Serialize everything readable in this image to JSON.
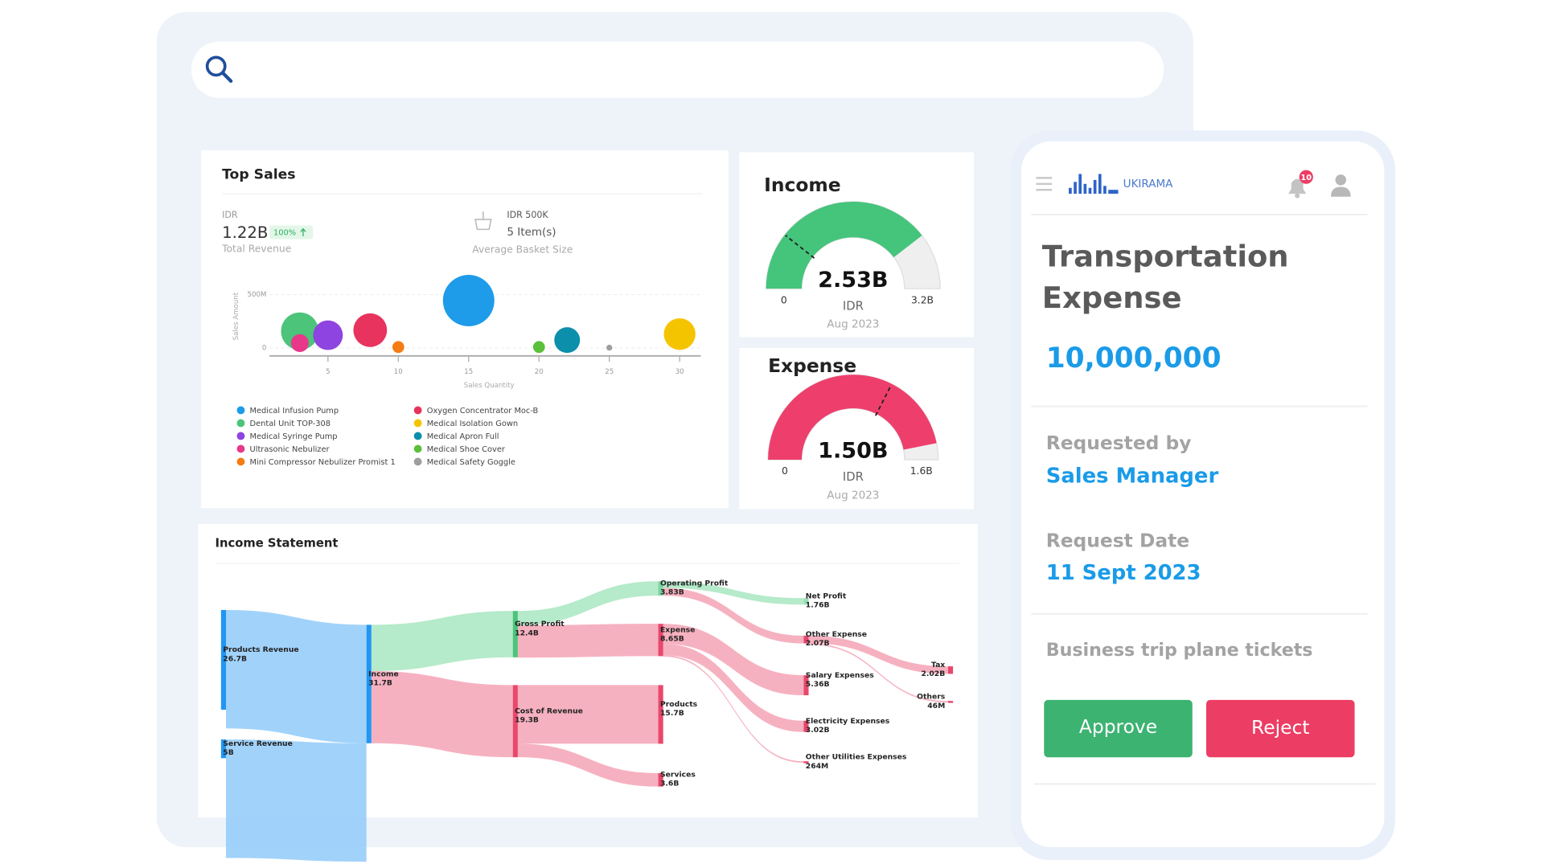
{
  "top_sales_summary": {
    "currency": "IDR",
    "total_revenue": "1.22B",
    "change": "100%",
    "total_revenue_label": "Total Revenue",
    "basket_value": "IDR 500K",
    "basket_items": "5 Item(s)",
    "basket_label": "Average Basket Size"
  },
  "chart_data": [
    {
      "type": "scatter",
      "title": "Top Sales",
      "x_label": "Sales Quantity",
      "y_label": "Sales Amount",
      "xlim": [
        0,
        31.5
      ],
      "xticks": [
        5,
        10,
        15,
        20,
        25,
        30
      ],
      "ylim": [
        0,
        500000000
      ],
      "yticks": [
        0,
        {
          "value": 500000000,
          "label": "500M"
        }
      ],
      "grid": true,
      "legend": "bottom-left",
      "series": [
        {
          "name": "Medical Infusion Pump",
          "color": "#1e9be9",
          "x": [
            15
          ],
          "values": [
            444000000
          ],
          "sizes": [
            26
          ]
        },
        {
          "name": "Dental Unit TOP-308",
          "color": "#4cc47a",
          "x": [
            3
          ],
          "values": [
            157000000
          ],
          "sizes": [
            19
          ]
        },
        {
          "name": "Medical Syringe Pump",
          "color": "#8e44e0",
          "x": [
            5
          ],
          "values": [
            120000000
          ],
          "sizes": [
            15
          ]
        },
        {
          "name": "Ultrasonic Nebulizer",
          "color": "#e8388a",
          "x": [
            3
          ],
          "values": [
            46000000
          ],
          "sizes": [
            9
          ]
        },
        {
          "name": "Mini Compressor Nebulizer Promist 1",
          "color": "#f57c12",
          "x": [
            10
          ],
          "values": [
            9000000
          ],
          "sizes": [
            6
          ]
        },
        {
          "name": "Oxygen Concentrator Moc-B",
          "color": "#e8335e",
          "x": [
            8
          ],
          "values": [
            167000000
          ],
          "sizes": [
            17
          ]
        },
        {
          "name": "Medical Isolation Gown",
          "color": "#f5c400",
          "x": [
            30
          ],
          "values": [
            130000000
          ],
          "sizes": [
            16
          ]
        },
        {
          "name": "Medical Apron Full",
          "color": "#0b8fab",
          "x": [
            22
          ],
          "values": [
            74000000
          ],
          "sizes": [
            13
          ]
        },
        {
          "name": "Medical Shoe Cover",
          "color": "#5bbf3c",
          "x": [
            20
          ],
          "values": [
            9000000
          ],
          "sizes": [
            6
          ]
        },
        {
          "name": "Medical Safety Goggle",
          "color": "#9e9e9e",
          "x": [
            25
          ],
          "values": [
            3000000
          ],
          "sizes": [
            3
          ]
        }
      ]
    },
    {
      "type": "gauge",
      "title": "Income",
      "value": 2530000000,
      "value_label": "2.53B",
      "unit": "IDR",
      "date": "Aug 2023",
      "ylim": [
        0,
        3200000000
      ],
      "yticks": [
        0,
        {
          "value": 3200000000,
          "label": "3.2B"
        }
      ],
      "marker": 680000000,
      "color": "#45c47c"
    },
    {
      "type": "gauge",
      "title": "Expense",
      "value": 1500000000,
      "value_label": "1.50B",
      "unit": "IDR",
      "date": "Aug 2023",
      "ylim": [
        0,
        1600000000
      ],
      "yticks": [
        0,
        {
          "value": 1600000000,
          "label": "1.6B"
        }
      ],
      "marker": 1040000000,
      "color": "#ee3f6c"
    },
    {
      "type": "sankey",
      "title": "Income Statement",
      "nodes": [
        {
          "label": "Products Revenue",
          "value": 26700000000,
          "value_label": "26.7B",
          "color": "#2196f3"
        },
        {
          "label": "Service Revenue",
          "value": 5000000000,
          "value_label": "5B",
          "color": "#2196f3"
        },
        {
          "label": "Income",
          "value": 31700000000,
          "value_label": "31.7B",
          "color": "#2196f3"
        },
        {
          "label": "Gross Profit",
          "value": 12400000000,
          "value_label": "12.4B",
          "color": "#4cc47a"
        },
        {
          "label": "Cost of Revenue",
          "value": 19300000000,
          "value_label": "19.3B",
          "color": "#e8486c"
        },
        {
          "label": "Operating Profit",
          "value": 3830000000,
          "value_label": "3.83B",
          "color": "#7ed6a0"
        },
        {
          "label": "Expense",
          "value": 8650000000,
          "value_label": "8.65B",
          "color": "#e8486c"
        },
        {
          "label": "Products",
          "value": 15700000000,
          "value_label": "15.7B",
          "color": "#e8486c"
        },
        {
          "label": "Services",
          "value": 3600000000,
          "value_label": "3.6B",
          "color": "#e8486c"
        },
        {
          "label": "Net Profit",
          "value": 1760000000,
          "value_label": "1.76B",
          "color": "#9adfb5"
        },
        {
          "label": "Other Expense",
          "value": 2070000000,
          "value_label": "2.07B",
          "color": "#e8486c"
        },
        {
          "label": "Salary Expenses",
          "value": 5360000000,
          "value_label": "5.36B",
          "color": "#e8486c"
        },
        {
          "label": "Electricity Expenses",
          "value": 3020000000,
          "value_label": "3.02B",
          "color": "#e8486c"
        },
        {
          "label": "Other Utilities Expenses",
          "value": 264000000,
          "value_label": "264M",
          "color": "#e8486c"
        },
        {
          "label": "Tax",
          "value": 2020000000,
          "value_label": "2.02B",
          "color": "#e8486c"
        },
        {
          "label": "Others",
          "value": 46000000,
          "value_label": "46M",
          "color": "#e8486c"
        }
      ],
      "links": [
        {
          "source": 0,
          "target": 2,
          "color": "#90caf9"
        },
        {
          "source": 1,
          "target": 2,
          "color": "#90caf9"
        },
        {
          "source": 2,
          "target": 3,
          "color": "#a8e6c1"
        },
        {
          "source": 2,
          "target": 4,
          "color": "#f5a3b5"
        },
        {
          "source": 3,
          "target": 5,
          "color": "#a8e6c1"
        },
        {
          "source": 3,
          "target": 6,
          "color": "#f5a3b5"
        },
        {
          "source": 4,
          "target": 7,
          "color": "#f5a3b5"
        },
        {
          "source": 4,
          "target": 8,
          "color": "#f5a3b5"
        },
        {
          "source": 5,
          "target": 9,
          "color": "#a8e6c1"
        },
        {
          "source": 5,
          "target": 10,
          "color": "#f5a3b5"
        },
        {
          "source": 6,
          "target": 11,
          "color": "#f5a3b5"
        },
        {
          "source": 6,
          "target": 12,
          "color": "#f5a3b5"
        },
        {
          "source": 6,
          "target": 13,
          "color": "#f5a3b5"
        },
        {
          "source": 10,
          "target": 14,
          "color": "#f5a3b5"
        },
        {
          "source": 10,
          "target": 15,
          "color": "#f5a3b5"
        }
      ]
    }
  ],
  "approval_panel": {
    "brand": "UKIRAMA",
    "notifications": "10",
    "title_lines": [
      "Transportation",
      "Expense"
    ],
    "amount": "10,000,000",
    "requested_by_label": "Requested by",
    "requested_by": "Sales Manager",
    "request_date_label": "Request Date",
    "request_date": "11 Sept 2023",
    "description": "Business trip plane tickets",
    "approve": "Approve",
    "reject": "Reject"
  }
}
